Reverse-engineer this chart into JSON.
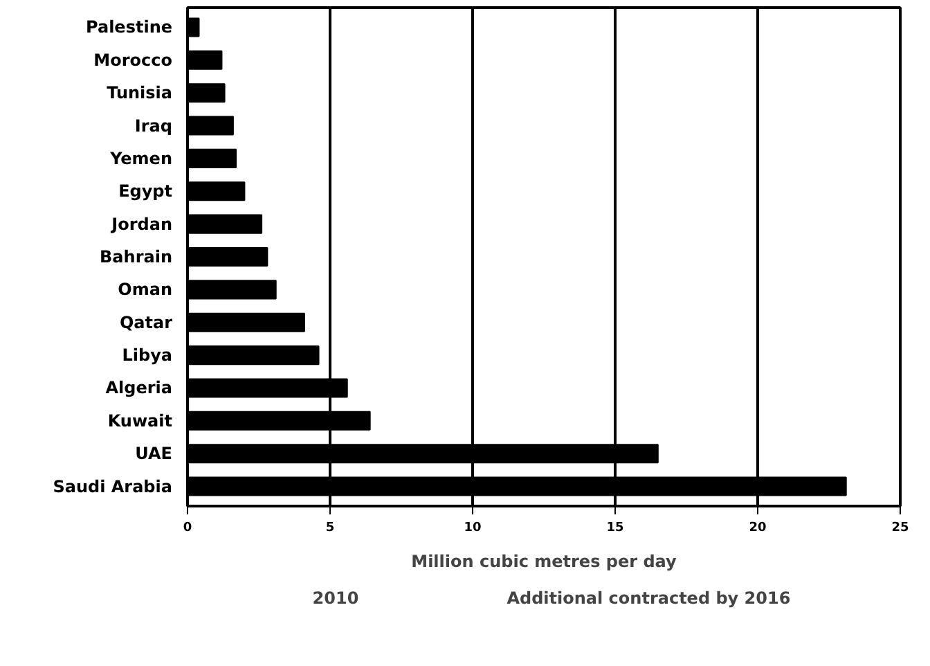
{
  "chart_data": {
    "type": "bar",
    "orientation": "horizontal",
    "categories": [
      "Palestine",
      "Morocco",
      "Tunisia",
      "Iraq",
      "Yemen",
      "Egypt",
      "Jordan",
      "Bahrain",
      "Oman",
      "Qatar",
      "Libya",
      "Algeria",
      "Kuwait",
      "UAE",
      "Saudi Arabia"
    ],
    "values": [
      0.4,
      1.2,
      1.3,
      1.6,
      1.7,
      2.0,
      2.6,
      2.8,
      3.1,
      4.1,
      4.6,
      5.6,
      6.4,
      16.5,
      23.1
    ],
    "color": "#000000",
    "xlim": [
      0,
      25
    ],
    "xticks": [
      0,
      5,
      10,
      15,
      20,
      25
    ],
    "grid": "x",
    "xlabel": "Million cubic metres per day",
    "annotations": [
      "2010",
      "Additional contracted by 2016"
    ]
  }
}
